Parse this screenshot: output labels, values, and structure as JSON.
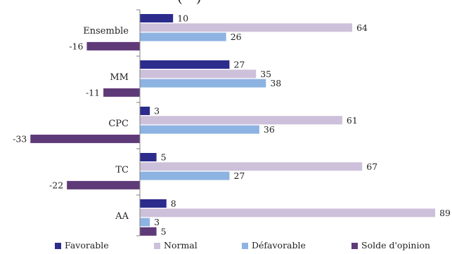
{
  "header_fragment": "(···)",
  "chart_data": {
    "type": "bar",
    "orientation": "horizontal",
    "categories": [
      "Ensemble",
      "MM",
      "CPC",
      "TC",
      "AA"
    ],
    "series": [
      {
        "name": "Favorable",
        "color": "#2B2C8C",
        "values": [
          10,
          27,
          3,
          5,
          8
        ]
      },
      {
        "name": "Normal",
        "color": "#CDC0DA",
        "values": [
          64,
          35,
          61,
          67,
          89
        ]
      },
      {
        "name": "Défavorable",
        "color": "#8DB3E2",
        "values": [
          26,
          38,
          36,
          27,
          3
        ]
      },
      {
        "name": "Solde d'opinion",
        "color": "#5F3A78",
        "values": [
          -16,
          -11,
          -33,
          -22,
          5
        ]
      }
    ],
    "xlim": [
      -33,
      89
    ],
    "legend_position": "bottom",
    "grid": false
  }
}
